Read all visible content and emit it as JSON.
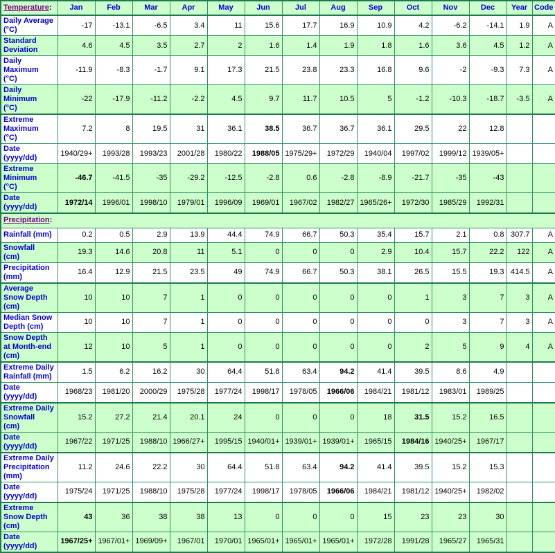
{
  "colors": {
    "row_green_bg": "#ccffcc",
    "border_green": "#2e9163",
    "border_thick_green": "#1f7a4f",
    "label_blue": "#0000cc",
    "section_link_purple": "#800080",
    "data_black": "#000000"
  },
  "header": {
    "temperature_link": "Temperature",
    "colon": ":",
    "months": [
      "Jan",
      "Feb",
      "Mar",
      "Apr",
      "May",
      "Jun",
      "Jul",
      "Aug",
      "Sep",
      "Oct",
      "Nov",
      "Dec"
    ],
    "year": "Year",
    "code": "Code"
  },
  "rows": [
    {
      "type": "data",
      "bg": "white",
      "thick_top": true,
      "label_lines": [
        "Daily Average",
        "(°C)"
      ],
      "cells": [
        "-17",
        "-13.1",
        "-6.5",
        "3.4",
        "11",
        "15.6",
        "17.7",
        "16.9",
        "10.9",
        "4.2",
        "-6.2",
        "-14.1",
        "1.9",
        "A"
      ],
      "bold": []
    },
    {
      "type": "data",
      "bg": "green",
      "thick_top": false,
      "label_lines": [
        "Standard",
        "Deviation"
      ],
      "cells": [
        "4.6",
        "4.5",
        "3.5",
        "2.7",
        "2",
        "1.6",
        "1.4",
        "1.9",
        "1.8",
        "1.6",
        "3.6",
        "4.5",
        "1.2",
        "A"
      ],
      "bold": []
    },
    {
      "type": "data",
      "bg": "white",
      "thick_top": false,
      "label_lines": [
        "Daily",
        "Maximum",
        "(°C)"
      ],
      "cells": [
        "-11.9",
        "-8.3",
        "-1.7",
        "9.1",
        "17.3",
        "21.5",
        "23.8",
        "23.3",
        "16.8",
        "9.6",
        "-2",
        "-9.3",
        "7.3",
        "A"
      ],
      "bold": []
    },
    {
      "type": "data",
      "bg": "green",
      "thick_top": false,
      "label_lines": [
        "Daily",
        "Minimum",
        "(°C)"
      ],
      "cells": [
        "-22",
        "-17.9",
        "-11.2",
        "-2.2",
        "4.5",
        "9.7",
        "11.7",
        "10.5",
        "5",
        "-1.2",
        "-10.3",
        "-18.7",
        "-3.5",
        "A"
      ],
      "bold": []
    },
    {
      "type": "data",
      "bg": "white",
      "thick_top": true,
      "label_lines": [
        "Extreme",
        "Maximum",
        "(°C)"
      ],
      "cells": [
        "7.2",
        "8",
        "19.5",
        "31",
        "36.1",
        "38.5",
        "36.7",
        "36.7",
        "36.1",
        "29.5",
        "22",
        "12.8",
        "",
        ""
      ],
      "bold": [
        5
      ]
    },
    {
      "type": "data",
      "bg": "white",
      "thick_top": false,
      "label_lines": [
        "Date",
        "(yyyy/dd)"
      ],
      "cells": [
        "1940/29+",
        "1993/28",
        "1993/23",
        "2001/28",
        "1980/22",
        "1988/05",
        "1975/29+",
        "1972/29",
        "1940/04",
        "1997/02",
        "1999/12",
        "1939/05+",
        "",
        ""
      ],
      "bold": [
        5
      ]
    },
    {
      "type": "data",
      "bg": "green",
      "thick_top": false,
      "label_lines": [
        "Extreme",
        "Minimum",
        "(°C)"
      ],
      "cells": [
        "-46.7",
        "-41.5",
        "-35",
        "-29.2",
        "-12.5",
        "-2.8",
        "0.6",
        "-2.8",
        "-8.9",
        "-21.7",
        "-35",
        "-43",
        "",
        ""
      ],
      "bold": [
        0
      ]
    },
    {
      "type": "data",
      "bg": "green",
      "thick_top": false,
      "label_lines": [
        "Date",
        "(yyyy/dd)"
      ],
      "cells": [
        "1972/14",
        "1996/01",
        "1998/10",
        "1979/01",
        "1996/09",
        "1969/01",
        "1967/02",
        "1982/27",
        "1965/26+",
        "1972/30",
        "1985/29",
        "1992/31",
        "",
        ""
      ],
      "bold": [
        0
      ]
    },
    {
      "type": "section",
      "bg": "green",
      "thick_top": true,
      "link": "Precipitation",
      "colon": ":"
    },
    {
      "type": "data",
      "bg": "white",
      "thick_top": false,
      "label_lines": [
        "Rainfall (mm)"
      ],
      "cells": [
        "0.2",
        "0.5",
        "2.9",
        "13.9",
        "44.4",
        "74.9",
        "66.7",
        "50.3",
        "35.4",
        "15.7",
        "2.1",
        "0.8",
        "307.7",
        "A"
      ],
      "bold": []
    },
    {
      "type": "data",
      "bg": "green",
      "thick_top": false,
      "label_lines": [
        "Snowfall",
        "(cm)"
      ],
      "cells": [
        "19.3",
        "14.6",
        "20.8",
        "11",
        "5.1",
        "0",
        "0",
        "0",
        "2.9",
        "10.4",
        "15.7",
        "22.2",
        "122",
        "A"
      ],
      "bold": []
    },
    {
      "type": "data",
      "bg": "white",
      "thick_top": false,
      "label_lines": [
        "Precipitation",
        "(mm)"
      ],
      "cells": [
        "16.4",
        "12.9",
        "21.5",
        "23.5",
        "49",
        "74.9",
        "66.7",
        "50.3",
        "38.1",
        "26.5",
        "15.5",
        "19.3",
        "414.5",
        "A"
      ],
      "bold": []
    },
    {
      "type": "data",
      "bg": "green",
      "thick_top": true,
      "label_lines": [
        "Average",
        "Snow Depth",
        "(cm)"
      ],
      "cells": [
        "10",
        "10",
        "7",
        "1",
        "0",
        "0",
        "0",
        "0",
        "0",
        "1",
        "3",
        "7",
        "3",
        "A"
      ],
      "bold": []
    },
    {
      "type": "data",
      "bg": "white",
      "thick_top": false,
      "label_lines": [
        "Median Snow",
        "Depth (cm)"
      ],
      "cells": [
        "10",
        "10",
        "7",
        "1",
        "0",
        "0",
        "0",
        "0",
        "0",
        "0",
        "3",
        "7",
        "3",
        "A"
      ],
      "bold": []
    },
    {
      "type": "data",
      "bg": "green",
      "thick_top": false,
      "label_lines": [
        "Snow Depth",
        "at Month-end",
        "(cm)"
      ],
      "cells": [
        "12",
        "10",
        "5",
        "1",
        "0",
        "0",
        "0",
        "0",
        "0",
        "2",
        "5",
        "9",
        "4",
        "A"
      ],
      "bold": []
    },
    {
      "type": "data",
      "bg": "white",
      "thick_top": true,
      "label_lines": [
        "Extreme Daily",
        "Rainfall (mm)"
      ],
      "cells": [
        "1.5",
        "6.2",
        "16.2",
        "30",
        "64.4",
        "51.8",
        "63.4",
        "94.2",
        "41.4",
        "39.5",
        "8.6",
        "4.9",
        "",
        ""
      ],
      "bold": [
        7
      ]
    },
    {
      "type": "data",
      "bg": "white",
      "thick_top": false,
      "label_lines": [
        "Date",
        "(yyyy/dd)"
      ],
      "cells": [
        "1968/23",
        "1981/20",
        "2000/29",
        "1975/28",
        "1977/24",
        "1998/17",
        "1978/05",
        "1966/06",
        "1984/21",
        "1981/12",
        "1983/01",
        "1989/25",
        "",
        ""
      ],
      "bold": [
        7
      ]
    },
    {
      "type": "data",
      "bg": "green",
      "thick_top": true,
      "label_lines": [
        "Extreme Daily",
        "Snowfall",
        "(cm)"
      ],
      "cells": [
        "15.2",
        "27.2",
        "21.4",
        "20.1",
        "24",
        "0",
        "0",
        "0",
        "18",
        "31.5",
        "15.2",
        "16.5",
        "",
        ""
      ],
      "bold": [
        9
      ]
    },
    {
      "type": "data",
      "bg": "green",
      "thick_top": false,
      "label_lines": [
        "Date",
        "(yyyy/dd)"
      ],
      "cells": [
        "1967/22",
        "1971/25",
        "1988/10",
        "1966/27+",
        "1995/15",
        "1940/01+",
        "1939/01+",
        "1939/01+",
        "1965/15",
        "1984/16",
        "1940/25+",
        "1967/17",
        "",
        ""
      ],
      "bold": [
        9
      ]
    },
    {
      "type": "data",
      "bg": "white",
      "thick_top": true,
      "label_lines": [
        "Extreme Daily",
        "Precipitation",
        "(mm)"
      ],
      "cells": [
        "11.2",
        "24.6",
        "22.2",
        "30",
        "64.4",
        "51.8",
        "63.4",
        "94.2",
        "41.4",
        "39.5",
        "15.2",
        "15.3",
        "",
        ""
      ],
      "bold": [
        7
      ]
    },
    {
      "type": "data",
      "bg": "white",
      "thick_top": false,
      "label_lines": [
        "Date",
        "(yyyy/dd)"
      ],
      "cells": [
        "1975/24",
        "1971/25",
        "1988/10",
        "1975/28",
        "1977/24",
        "1998/17",
        "1978/05",
        "1966/06",
        "1984/21",
        "1981/12",
        "1940/25+",
        "1982/02",
        "",
        ""
      ],
      "bold": [
        7
      ]
    },
    {
      "type": "data",
      "bg": "green",
      "thick_top": true,
      "label_lines": [
        "Extreme",
        "Snow Depth",
        "(cm)"
      ],
      "cells": [
        "43",
        "36",
        "38",
        "38",
        "13",
        "0",
        "0",
        "0",
        "15",
        "23",
        "23",
        "30",
        "",
        ""
      ],
      "bold": [
        0
      ]
    },
    {
      "type": "data",
      "bg": "green",
      "thick_top": false,
      "label_lines": [
        "Date",
        "(yyyy/dd)"
      ],
      "cells": [
        "1967/25+",
        "1967/01+",
        "1969/09+",
        "1967/01",
        "1970/01",
        "1965/01+",
        "1965/01+",
        "1965/01+",
        "1972/28",
        "1991/28",
        "1965/27",
        "1965/31",
        "",
        ""
      ],
      "bold": [
        0
      ]
    }
  ]
}
